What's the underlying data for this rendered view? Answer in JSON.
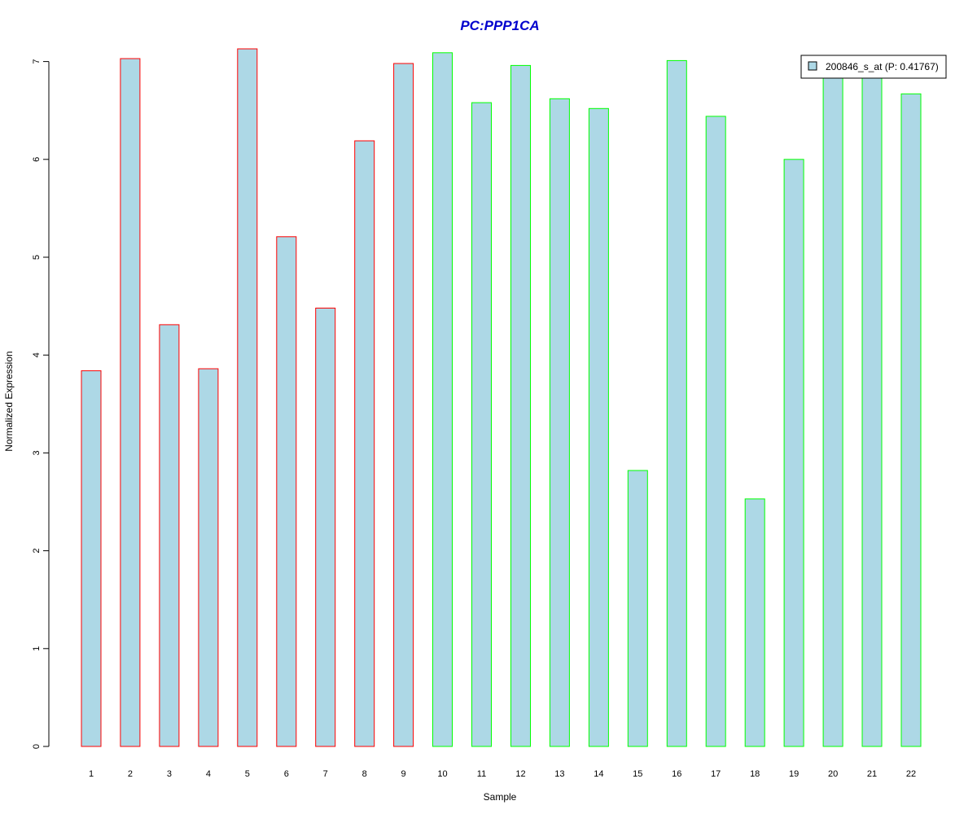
{
  "colors": {
    "background": "#ffffff",
    "bar_fill": "#add8e6",
    "group_1_border": "#ff0000",
    "group_2_border": "#00ff00",
    "title": "#0000cd",
    "axis": "#000000"
  },
  "chart_data": {
    "type": "bar",
    "title": "PC:PPP1CA",
    "xlabel": "Sample",
    "ylabel": "Normalized Expression",
    "categories": [
      "1",
      "2",
      "3",
      "4",
      "5",
      "6",
      "7",
      "8",
      "9",
      "10",
      "11",
      "12",
      "13",
      "14",
      "15",
      "16",
      "17",
      "18",
      "19",
      "20",
      "21",
      "22"
    ],
    "series": [
      {
        "name": "200846_s_at (P: 0.41767)",
        "values": [
          3.84,
          7.03,
          4.31,
          3.86,
          7.13,
          5.21,
          4.48,
          6.19,
          6.98,
          7.09,
          6.58,
          6.96,
          6.62,
          6.52,
          2.82,
          7.01,
          6.44,
          2.53,
          6.0,
          6.9,
          6.9,
          6.67
        ],
        "border_groups": [
          "group_1",
          "group_1",
          "group_1",
          "group_1",
          "group_1",
          "group_1",
          "group_1",
          "group_1",
          "group_1",
          "group_2",
          "group_2",
          "group_2",
          "group_2",
          "group_2",
          "group_2",
          "group_2",
          "group_2",
          "group_2",
          "group_2",
          "group_2",
          "group_2",
          "group_2"
        ]
      }
    ],
    "ylim": [
      0,
      7
    ],
    "yticks": [
      0,
      1,
      2,
      3,
      4,
      5,
      6,
      7
    ],
    "grid": false,
    "legend_position": "top-right"
  }
}
